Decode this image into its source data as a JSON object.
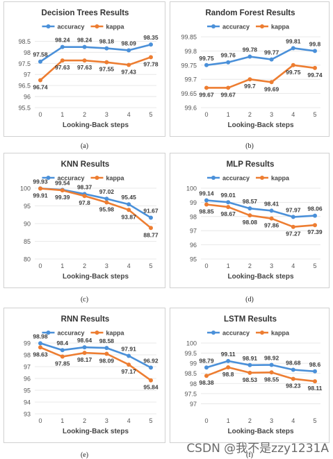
{
  "chart_data": [
    {
      "type": "line",
      "title": "Decision Trees Results",
      "xlabel": "Looking-Back steps",
      "ylabel": "",
      "x": [
        0,
        1,
        2,
        3,
        4,
        5
      ],
      "ylim": [
        95.5,
        98.7
      ],
      "yticks": [
        95.5,
        96,
        96.5,
        97,
        97.5,
        98,
        98.5
      ],
      "series": [
        {
          "name": "accuracy",
          "color": "#4a90d9",
          "values": [
            97.58,
            98.24,
            98.24,
            98.18,
            98.09,
            98.35
          ]
        },
        {
          "name": "kappa",
          "color": "#ed7d31",
          "values": [
            96.74,
            97.63,
            97.63,
            97.55,
            97.43,
            97.78
          ]
        }
      ],
      "legend": "top",
      "caption": "(a)"
    },
    {
      "type": "line",
      "title": "Random Forest Results",
      "xlabel": "Looking-Back steps",
      "ylabel": "",
      "x": [
        0,
        1,
        2,
        3,
        4,
        5
      ],
      "ylim": [
        99.6,
        99.85
      ],
      "yticks": [
        99.6,
        99.65,
        99.7,
        99.75,
        99.8,
        99.85
      ],
      "series": [
        {
          "name": "accuracy",
          "color": "#4a90d9",
          "values": [
            99.75,
            99.76,
            99.78,
            99.77,
            99.81,
            99.8
          ]
        },
        {
          "name": "kappa",
          "color": "#ed7d31",
          "values": [
            99.67,
            99.67,
            99.7,
            99.69,
            99.75,
            99.74
          ]
        }
      ],
      "legend": "top",
      "caption": "(b)"
    },
    {
      "type": "line",
      "title": "KNN Results",
      "xlabel": "Looking-Back steps",
      "ylabel": "",
      "x": [
        0,
        1,
        2,
        3,
        4,
        5
      ],
      "ylim": [
        80,
        100
      ],
      "yticks": [
        80,
        85,
        90,
        95,
        100
      ],
      "series": [
        {
          "name": "accuracy",
          "color": "#4a90d9",
          "values": [
            99.93,
            99.54,
            98.37,
            97.02,
            95.45,
            91.67
          ]
        },
        {
          "name": "kappa",
          "color": "#ed7d31",
          "values": [
            99.91,
            99.39,
            97.8,
            95.98,
            93.87,
            88.77
          ]
        }
      ],
      "legend": "top",
      "caption": "(c)"
    },
    {
      "type": "line",
      "title": "MLP Results",
      "xlabel": "Looking-Back steps",
      "ylabel": "",
      "x": [
        0,
        1,
        2,
        3,
        4,
        5
      ],
      "ylim": [
        95,
        100
      ],
      "yticks": [
        95,
        96,
        97,
        98,
        99,
        100
      ],
      "series": [
        {
          "name": "accuracy",
          "color": "#4a90d9",
          "values": [
            99.14,
            99.01,
            98.57,
            98.41,
            97.97,
            98.06
          ]
        },
        {
          "name": "kappa",
          "color": "#ed7d31",
          "values": [
            98.85,
            98.67,
            98.08,
            97.86,
            97.27,
            97.39
          ]
        }
      ],
      "legend": "top",
      "caption": "(d)"
    },
    {
      "type": "line",
      "title": "RNN Results",
      "xlabel": "Looking-Back steps",
      "ylabel": "",
      "x": [
        0,
        1,
        2,
        3,
        4,
        5
      ],
      "ylim": [
        93,
        99
      ],
      "yticks": [
        93,
        94,
        95,
        96,
        97,
        98,
        99
      ],
      "series": [
        {
          "name": "accuracy",
          "color": "#4a90d9",
          "values": [
            98.98,
            98.4,
            98.64,
            98.58,
            97.91,
            96.92
          ]
        },
        {
          "name": "kappa",
          "color": "#ed7d31",
          "values": [
            98.63,
            97.85,
            98.17,
            98.09,
            97.17,
            95.84
          ]
        }
      ],
      "legend": "top",
      "caption": "(e)"
    },
    {
      "type": "line",
      "title": "LSTM Results",
      "xlabel": "Looking-Back steps",
      "ylabel": "",
      "x": [
        0,
        1,
        2,
        3,
        4,
        5
      ],
      "ylim": [
        96.5,
        100
      ],
      "yticks": [
        97,
        97.5,
        98,
        98.5,
        99,
        99.5,
        100
      ],
      "series": [
        {
          "name": "accuracy",
          "color": "#4a90d9",
          "values": [
            98.79,
            99.11,
            98.91,
            98.92,
            98.68,
            98.6
          ]
        },
        {
          "name": "kappa",
          "color": "#ed7d31",
          "values": [
            98.38,
            98.8,
            98.53,
            98.55,
            98.23,
            98.11
          ]
        }
      ],
      "legend": "top",
      "caption": "(f)"
    }
  ],
  "watermark": "CSDN @我不是zzy1231A"
}
